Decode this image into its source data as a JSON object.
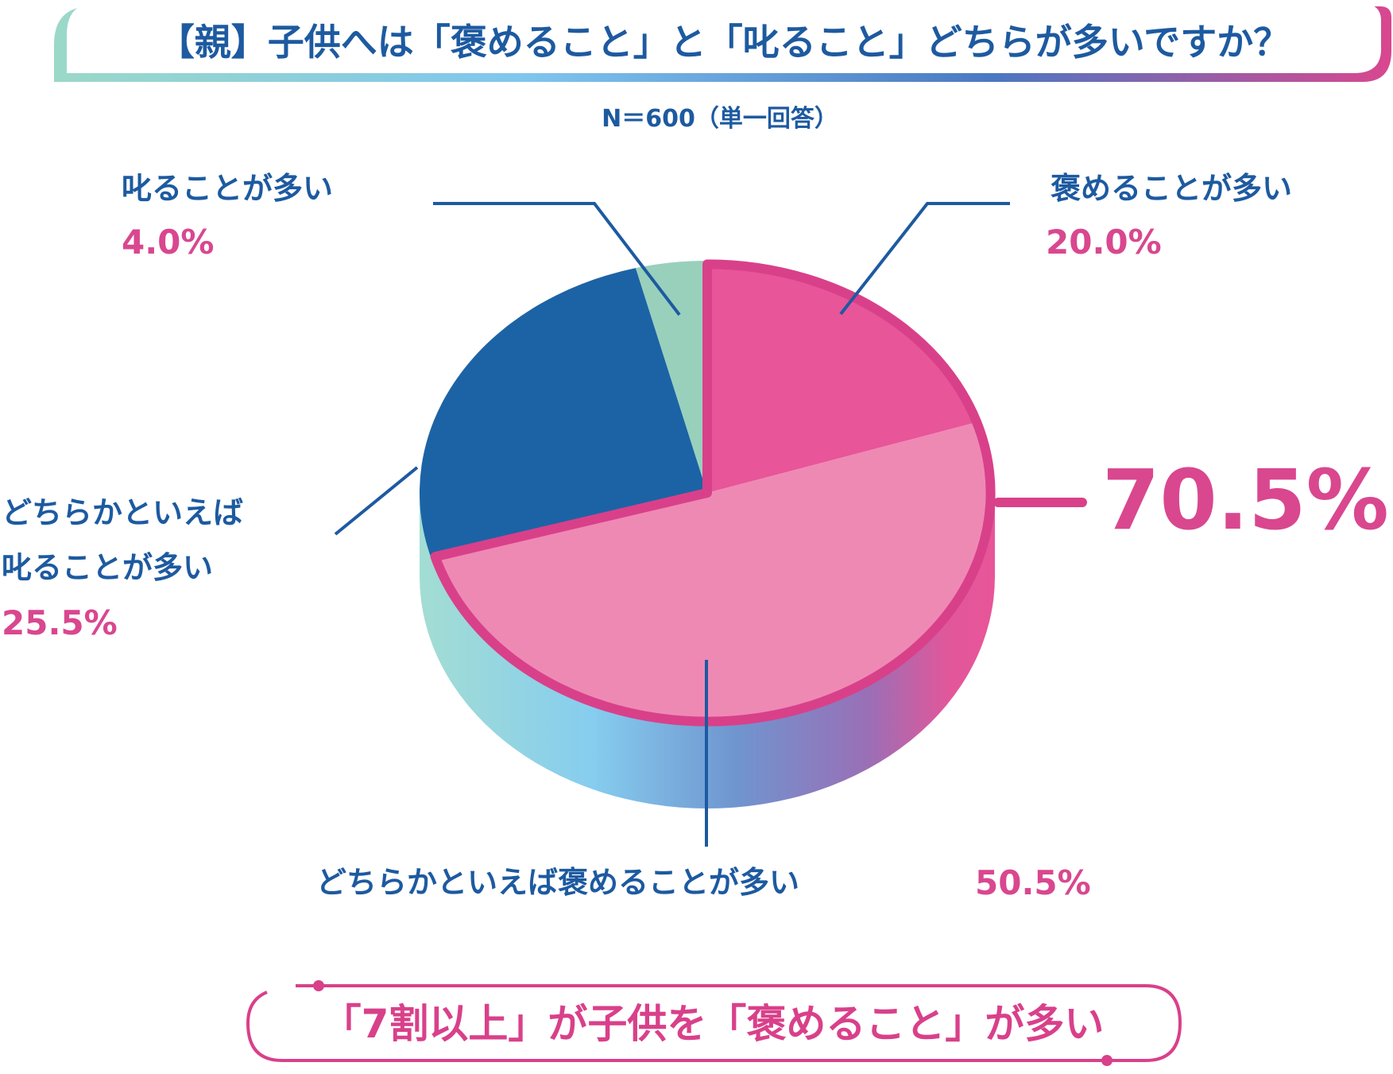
{
  "title": "【親】子供へは「褒めること」と「叱ること」どちらが多いですか？",
  "sample_note": "N＝600（単一回答）",
  "combined": {
    "value": 70.5,
    "label": "70.5%"
  },
  "summary": "「7割以上」が子供を「褒めること」が多い",
  "colors": {
    "accent": "#d9478f",
    "praise_more": "#e85599",
    "somewhat_praise": "#ee89b4",
    "somewhat_scold": "#1c63a5",
    "scold_more": "#98d0bc",
    "label_blue": "#1d5aa0"
  },
  "chart_data": {
    "type": "pie",
    "title": "【親】子供へは「褒めること」と「叱ること」どちらが多いですか？",
    "slices": [
      {
        "label": "褒めることが多い",
        "value": 20.0,
        "display": "20.0%",
        "color": "#e85599"
      },
      {
        "label": "どちらかといえば褒めることが多い",
        "value": 50.5,
        "display": "50.5%",
        "color": "#ee89b4"
      },
      {
        "label": "どちらかといえば叱ることが多い",
        "value": 25.5,
        "display": "25.5%",
        "color": "#1c63a5"
      },
      {
        "label": "叱ることが多い",
        "value": 4.0,
        "display": "4.0%",
        "color": "#98d0bc"
      }
    ],
    "label_lines": {
      "somewhat_scold": [
        "どちらかといえば",
        "叱ることが多い"
      ]
    },
    "start": "top, clockwise",
    "style": "3d-tilted"
  }
}
